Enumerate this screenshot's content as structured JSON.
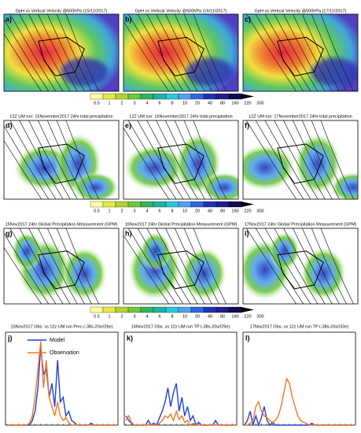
{
  "panels": [
    {
      "letter": "a)",
      "title": "GpH vs Vertical Velocity @500hPa (15/11/2017)"
    },
    {
      "letter": "b)",
      "title": "GpH vs Vertical Velocity @500hPa (16/11/2017)"
    },
    {
      "letter": "c)",
      "title": "GpH vs Vertical Velocity @500hPa (17/11/2017)"
    },
    {
      "letter": "d)",
      "title": "12Z UM run: 15November2017 24hr total precipitation"
    },
    {
      "letter": "e)",
      "title": "12Z UM run: 16November2017 24hr total precipitation"
    },
    {
      "letter": "f)",
      "title": "12Z UM run: 17November2017 24hr total precipitation"
    },
    {
      "letter": "g)",
      "title": "15Nov2017 24hr Global Precipitation Measurement (GPM)"
    },
    {
      "letter": "h)",
      "title": "16Nov2017 24hr Global Precipitation Measurement (GPM)"
    },
    {
      "letter": "i)",
      "title": "17Nov2017 24hr Global Precipitation Measurement (GPM)"
    }
  ],
  "colorbar": {
    "labels": [
      "0.5",
      "1",
      "2",
      "3",
      "4",
      "6",
      "8",
      "10",
      "20",
      "40",
      "80",
      "160",
      "220",
      "300"
    ],
    "colors": [
      "#ffffa0",
      "#e8e840",
      "#b4d232",
      "#6ec83c",
      "#32b45a",
      "#1eb4a0",
      "#28c8dc",
      "#50a0f0",
      "#3264dc",
      "#1e32b4",
      "#1e1e8c",
      "#140a50",
      "#000000"
    ]
  },
  "chart_data": [
    {
      "type": "line",
      "letter": "j)",
      "title": "15Nov2017 Obs. vs 12z UM run Prec.(-38s-20s//26e)",
      "ylim": [
        0,
        100
      ],
      "legend": "top-left",
      "series": [
        {
          "name": "Model",
          "color": "#1f3fe0",
          "values": [
            0,
            0,
            0,
            0,
            0,
            0,
            0,
            0,
            0,
            5,
            15,
            40,
            85,
            55,
            60,
            30,
            45,
            20,
            70,
            25,
            30,
            10,
            15,
            5,
            3,
            0,
            0,
            0,
            0,
            0,
            2,
            0,
            0,
            0,
            0,
            0,
            0,
            0,
            0,
            0
          ]
        },
        {
          "name": "Observation",
          "color": "#f07820",
          "values": [
            0,
            0,
            0,
            0,
            0,
            0,
            0,
            0,
            2,
            10,
            30,
            60,
            90,
            40,
            70,
            30,
            20,
            10,
            25,
            10,
            5,
            8,
            3,
            0,
            0,
            0,
            0,
            0,
            0,
            0,
            0,
            0,
            0,
            0,
            0,
            0,
            0,
            0,
            0,
            0
          ]
        }
      ]
    },
    {
      "type": "line",
      "letter": "k)",
      "title": "16Nov2017 Obs. vs 12z UM run TP (-38s-20s//29e)",
      "ylim": [
        0,
        100
      ],
      "series": [
        {
          "name": "Model",
          "color": "#1f3fe0",
          "values": [
            10,
            5,
            2,
            0,
            0,
            0,
            0,
            0,
            5,
            0,
            2,
            0,
            8,
            15,
            25,
            40,
            20,
            35,
            45,
            15,
            30,
            10,
            20,
            5,
            10,
            0,
            3,
            0,
            0,
            0,
            0,
            0,
            5,
            0,
            0,
            0,
            0,
            0,
            0,
            0
          ]
        },
        {
          "name": "Observation",
          "color": "#f07820",
          "values": [
            5,
            10,
            3,
            0,
            0,
            0,
            0,
            0,
            0,
            0,
            0,
            0,
            2,
            5,
            10,
            8,
            12,
            5,
            15,
            6,
            10,
            3,
            5,
            0,
            2,
            0,
            0,
            0,
            0,
            0,
            0,
            0,
            0,
            0,
            0,
            0,
            0,
            0,
            0,
            0
          ]
        }
      ]
    },
    {
      "type": "line",
      "letter": "l)",
      "title": "17Nov2017 Obs. vs 12z UM run TP (-38s-20s//33e)",
      "ylim": [
        0,
        100
      ],
      "series": [
        {
          "name": "Model",
          "color": "#1f3fe0",
          "values": [
            0,
            5,
            15,
            0,
            10,
            0,
            8,
            20,
            5,
            0,
            3,
            0,
            0,
            0,
            0,
            0,
            0,
            0,
            0,
            0,
            0,
            0,
            0,
            0,
            2,
            0,
            0,
            0,
            0,
            0,
            0,
            0,
            0,
            0,
            0,
            0,
            0,
            0,
            0,
            0
          ]
        },
        {
          "name": "Observation",
          "color": "#f07820",
          "values": [
            0,
            0,
            2,
            5,
            20,
            25,
            15,
            10,
            8,
            5,
            3,
            5,
            10,
            20,
            35,
            50,
            45,
            30,
            20,
            10,
            5,
            3,
            2,
            0,
            0,
            0,
            0,
            0,
            0,
            0,
            0,
            0,
            0,
            0,
            0,
            0,
            0,
            0,
            0,
            0
          ]
        }
      ]
    }
  ]
}
